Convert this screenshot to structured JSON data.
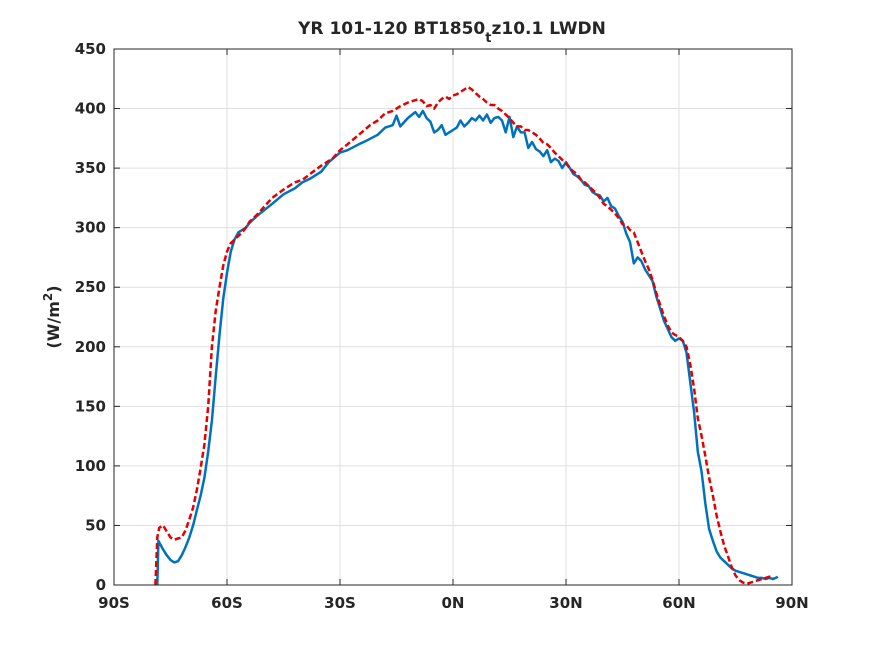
{
  "chart_data": {
    "type": "line",
    "title": {
      "prefix": "YR 101-120 BT1850",
      "subscript": "t",
      "suffix": "z10.1 LWDN"
    },
    "xlabel": "",
    "ylabel": {
      "prefix": "(W/m",
      "superscript": "2",
      "suffix": ")"
    },
    "xlim": [
      -90,
      90
    ],
    "ylim": [
      0,
      450
    ],
    "xticks": [
      -90,
      -60,
      -30,
      0,
      30,
      60,
      90
    ],
    "xtick_labels": [
      "90S",
      "60S",
      "30S",
      "0N",
      "30N",
      "60N",
      "90N"
    ],
    "yticks": [
      0,
      50,
      100,
      150,
      200,
      250,
      300,
      350,
      400,
      450
    ],
    "ytick_labels": [
      "0",
      "50",
      "100",
      "150",
      "200",
      "250",
      "300",
      "350",
      "400",
      "450"
    ],
    "grid": true,
    "series": [
      {
        "color": "#0072BD",
        "style": "solid",
        "x": [
          -78.5,
          -78.2,
          -77,
          -76,
          -75,
          -74,
          -73,
          -72,
          -71,
          -70,
          -69,
          -68,
          -67,
          -66,
          -65,
          -64,
          -63,
          -62,
          -61,
          -60,
          -59,
          -58,
          -57,
          -56,
          -55,
          -54,
          -52,
          -50,
          -48,
          -45,
          -42,
          -40,
          -38,
          -35,
          -33,
          -30,
          -28,
          -25,
          -23,
          -20,
          -18,
          -16,
          -15,
          -14,
          -12,
          -10,
          -9,
          -8,
          -7,
          -6,
          -5,
          -4,
          -3,
          -2,
          -1,
          0,
          1,
          2,
          3,
          4,
          5,
          6,
          7,
          8,
          9,
          10,
          11,
          12,
          13,
          14,
          15,
          16,
          17,
          18,
          19,
          20,
          21,
          22,
          23,
          24,
          25,
          26,
          27,
          28,
          29,
          30,
          31,
          32,
          33,
          34,
          35,
          36,
          37,
          38,
          39,
          40,
          41,
          42,
          43,
          44,
          45,
          46,
          47,
          48,
          49,
          50,
          51,
          52,
          53,
          54,
          55,
          56,
          57,
          58,
          59,
          60,
          61,
          62,
          63,
          64,
          65,
          66,
          67,
          68,
          69,
          70,
          71,
          72,
          73,
          74,
          75,
          76,
          77,
          78,
          79,
          80,
          81,
          82,
          83,
          84,
          85,
          85.7,
          86.2
        ],
        "y": [
          0,
          37,
          30,
          25,
          21,
          19,
          20,
          25,
          32,
          40,
          50,
          63,
          75,
          90,
          112,
          138,
          175,
          210,
          240,
          262,
          280,
          290,
          296,
          298,
          300,
          304,
          310,
          315,
          320,
          328,
          333,
          338,
          341,
          347,
          355,
          363,
          365,
          370,
          373,
          378,
          384,
          386,
          394,
          385,
          392,
          397,
          393,
          398,
          392,
          389,
          380,
          382,
          386,
          378,
          380,
          382,
          384,
          390,
          385,
          388,
          392,
          390,
          394,
          390,
          395,
          388,
          392,
          393,
          390,
          380,
          393,
          376,
          385,
          380,
          380,
          367,
          372,
          366,
          364,
          360,
          365,
          355,
          358,
          356,
          350,
          355,
          350,
          345,
          343,
          340,
          336,
          335,
          330,
          328,
          327,
          322,
          325,
          318,
          316,
          310,
          305,
          295,
          288,
          270,
          275,
          272,
          265,
          260,
          255,
          242,
          232,
          222,
          215,
          208,
          205,
          207,
          205,
          195,
          170,
          145,
          112,
          95,
          68,
          47,
          37,
          28,
          23,
          20,
          17,
          14,
          12,
          11,
          10,
          9,
          8,
          7,
          6,
          6,
          5,
          6,
          5,
          6,
          7
        ]
      },
      {
        "color": "#E50000",
        "style": "dashed",
        "x": [
          -79,
          -78.5,
          -78,
          -77,
          -76,
          -75,
          -74,
          -73,
          -72,
          -71,
          -70,
          -69,
          -68,
          -67,
          -66,
          -65,
          -64,
          -63,
          -62,
          -61,
          -60,
          -59,
          -58,
          -57,
          -56,
          -55,
          -54,
          -52,
          -50,
          -48,
          -45,
          -42,
          -40,
          -38,
          -35,
          -32,
          -30,
          -28,
          -25,
          -22,
          -20,
          -18,
          -16,
          -14,
          -12,
          -10,
          -9,
          -8,
          -7,
          -6,
          -5,
          -4,
          -3,
          -2,
          -1,
          0,
          1,
          2,
          3,
          4,
          5,
          6,
          7,
          8,
          9,
          10,
          11,
          12,
          13,
          14,
          15,
          16,
          17,
          18,
          19,
          20,
          21,
          22,
          23,
          24,
          25,
          26,
          27,
          28,
          29,
          30,
          31,
          32,
          33,
          34,
          35,
          36,
          37,
          38,
          39,
          40,
          41,
          42,
          43,
          44,
          45,
          46,
          47,
          48,
          49,
          50,
          51,
          52,
          53,
          54,
          55,
          56,
          57,
          58,
          59,
          60,
          61,
          62,
          63,
          64,
          65,
          66,
          67,
          68,
          69,
          70,
          71,
          72,
          73,
          74,
          75,
          76,
          77,
          78,
          79,
          80,
          81,
          82,
          83,
          84,
          85
        ],
        "y": [
          0,
          40,
          48,
          50,
          45,
          40,
          38,
          39,
          40,
          46,
          55,
          65,
          80,
          98,
          118,
          150,
          200,
          230,
          250,
          268,
          280,
          287,
          290,
          293,
          296,
          300,
          305,
          311,
          318,
          325,
          332,
          338,
          340,
          345,
          352,
          358,
          365,
          370,
          378,
          386,
          390,
          396,
          398,
          402,
          405,
          407,
          408,
          406,
          402,
          403,
          400,
          405,
          408,
          410,
          408,
          411,
          412,
          414,
          416,
          418,
          416,
          413,
          410,
          408,
          405,
          403,
          403,
          400,
          398,
          395,
          392,
          388,
          385,
          385,
          382,
          382,
          380,
          378,
          375,
          371,
          370,
          367,
          363,
          360,
          357,
          354,
          350,
          347,
          345,
          340,
          338,
          335,
          332,
          329,
          325,
          320,
          318,
          315,
          312,
          308,
          303,
          302,
          298,
          296,
          288,
          280,
          272,
          265,
          256,
          245,
          235,
          226,
          218,
          212,
          210,
          208,
          205,
          200,
          185,
          165,
          140,
          125,
          108,
          90,
          75,
          58,
          45,
          33,
          24,
          15,
          8,
          4,
          2,
          1,
          2,
          3,
          4,
          5,
          6,
          7,
          6
        ]
      }
    ]
  }
}
